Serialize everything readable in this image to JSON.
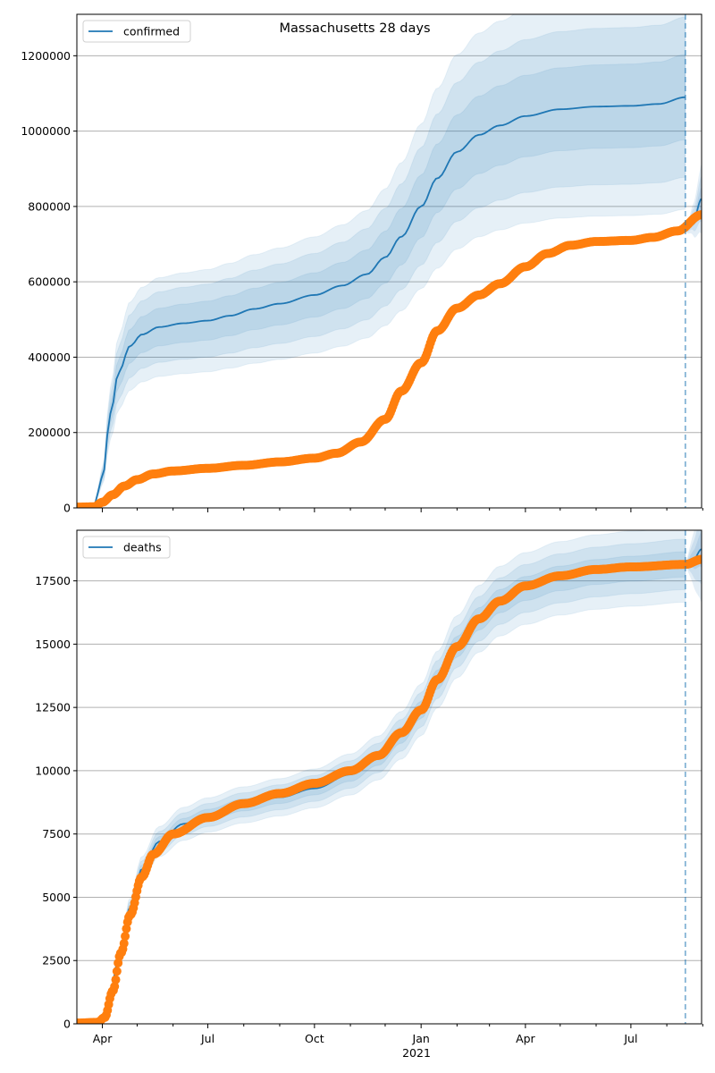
{
  "title": "Massachusetts 28 days",
  "colors": {
    "model": "#1f77b4",
    "observed": "#ff7f0e",
    "band": "#1f77b4",
    "grid": "#b0b0b0",
    "forecast_line": "#1f77b4"
  },
  "x_axis": {
    "start": "2020-03-10",
    "end": "2021-08-31",
    "major_ticks": [
      {
        "date": "2020-04-01",
        "label": "Apr"
      },
      {
        "date": "2020-07-01",
        "label": "Jul"
      },
      {
        "date": "2020-10-01",
        "label": "Oct"
      },
      {
        "date": "2021-01-01",
        "label": "Jan"
      },
      {
        "date": "2021-04-01",
        "label": "Apr"
      },
      {
        "date": "2021-07-01",
        "label": "Jul"
      }
    ],
    "year_label": "2021",
    "forecast_date": "2021-08-17"
  },
  "chart_data": [
    {
      "type": "line",
      "panel": "top",
      "title": "Massachusetts 28 days",
      "legend": [
        {
          "label": "confirmed",
          "placement": "upper-left"
        }
      ],
      "ylim": [
        0,
        1310000
      ],
      "yticks": [
        0,
        200000,
        400000,
        600000,
        800000,
        1000000,
        1200000
      ],
      "ytick_labels": [
        "0",
        "200000",
        "400000",
        "600000",
        "800000",
        "1000000",
        "1200000"
      ],
      "grid": "y",
      "series": [
        {
          "name": "confirmed-model",
          "legend_label": "confirmed",
          "points": [
            [
              "2020-03-10",
              0
            ],
            [
              "2020-03-25",
              10000
            ],
            [
              "2020-04-01",
              80000
            ],
            [
              "2020-04-08",
              250000
            ],
            [
              "2020-04-15",
              360000
            ],
            [
              "2020-04-25",
              430000
            ],
            [
              "2020-05-05",
              460000
            ],
            [
              "2020-05-20",
              480000
            ],
            [
              "2020-06-10",
              490000
            ],
            [
              "2020-07-01",
              497000
            ],
            [
              "2020-07-20",
              510000
            ],
            [
              "2020-08-10",
              528000
            ],
            [
              "2020-09-01",
              542000
            ],
            [
              "2020-10-01",
              565000
            ],
            [
              "2020-10-25",
              590000
            ],
            [
              "2020-11-15",
              620000
            ],
            [
              "2020-12-01",
              665000
            ],
            [
              "2020-12-15",
              720000
            ],
            [
              "2021-01-01",
              800000
            ],
            [
              "2021-01-15",
              875000
            ],
            [
              "2021-02-01",
              945000
            ],
            [
              "2021-02-20",
              990000
            ],
            [
              "2021-03-10",
              1015000
            ],
            [
              "2021-04-01",
              1040000
            ],
            [
              "2021-05-01",
              1058000
            ],
            [
              "2021-06-01",
              1065000
            ],
            [
              "2021-07-01",
              1067000
            ],
            [
              "2021-07-25",
              1072000
            ],
            [
              "2021-08-17",
              1090000
            ]
          ],
          "bands": {
            "inner_halfwidth": 0.08,
            "mid_halfwidth": 0.15,
            "outer_halfwidth": 0.21
          }
        },
        {
          "name": "confirmed-forecast",
          "points": [
            [
              "2021-08-17",
              735000
            ],
            [
              "2021-08-24",
              765000
            ],
            [
              "2021-08-31",
              820000
            ]
          ]
        },
        {
          "name": "confirmed-observed",
          "type": "scatter",
          "points": [
            [
              "2020-03-10",
              2000
            ],
            [
              "2020-03-25",
              3000
            ],
            [
              "2020-04-01",
              15000
            ],
            [
              "2020-04-10",
              35000
            ],
            [
              "2020-04-20",
              58000
            ],
            [
              "2020-05-01",
              75000
            ],
            [
              "2020-05-15",
              90000
            ],
            [
              "2020-06-01",
              98000
            ],
            [
              "2020-07-01",
              105000
            ],
            [
              "2020-08-01",
              113000
            ],
            [
              "2020-09-01",
              122000
            ],
            [
              "2020-10-01",
              132000
            ],
            [
              "2020-10-20",
              145000
            ],
            [
              "2020-11-10",
              175000
            ],
            [
              "2020-12-01",
              235000
            ],
            [
              "2020-12-15",
              310000
            ],
            [
              "2021-01-01",
              385000
            ],
            [
              "2021-01-15",
              470000
            ],
            [
              "2021-02-01",
              530000
            ],
            [
              "2021-02-20",
              565000
            ],
            [
              "2021-03-10",
              595000
            ],
            [
              "2021-04-01",
              640000
            ],
            [
              "2021-04-20",
              675000
            ],
            [
              "2021-05-10",
              697000
            ],
            [
              "2021-06-01",
              707000
            ],
            [
              "2021-07-01",
              710000
            ],
            [
              "2021-07-20",
              718000
            ],
            [
              "2021-08-10",
              735000
            ],
            [
              "2021-08-31",
              778000
            ]
          ]
        }
      ]
    },
    {
      "type": "line",
      "panel": "bottom",
      "legend": [
        {
          "label": "deaths",
          "placement": "upper-left"
        }
      ],
      "ylim": [
        0,
        19500
      ],
      "yticks": [
        0,
        2500,
        5000,
        7500,
        10000,
        12500,
        15000,
        17500
      ],
      "ytick_labels": [
        "0",
        "2500",
        "5000",
        "7500",
        "10000",
        "12500",
        "15000",
        "17500"
      ],
      "grid": "y",
      "series": [
        {
          "name": "deaths-model",
          "legend_label": "deaths",
          "points": [
            [
              "2020-03-10",
              0
            ],
            [
              "2020-03-28",
              50
            ],
            [
              "2020-04-05",
              600
            ],
            [
              "2020-04-15",
              2500
            ],
            [
              "2020-04-25",
              4600
            ],
            [
              "2020-05-05",
              6100
            ],
            [
              "2020-05-20",
              7200
            ],
            [
              "2020-06-10",
              7900
            ],
            [
              "2020-07-01",
              8250
            ],
            [
              "2020-08-01",
              8650
            ],
            [
              "2020-09-01",
              8950
            ],
            [
              "2020-10-01",
              9300
            ],
            [
              "2020-11-01",
              9850
            ],
            [
              "2020-11-25",
              10500
            ],
            [
              "2020-12-15",
              11400
            ],
            [
              "2021-01-01",
              12400
            ],
            [
              "2021-01-15",
              13600
            ],
            [
              "2021-02-01",
              14900
            ],
            [
              "2021-02-20",
              16000
            ],
            [
              "2021-03-10",
              16700
            ],
            [
              "2021-04-01",
              17200
            ],
            [
              "2021-05-01",
              17600
            ],
            [
              "2021-06-01",
              17850
            ],
            [
              "2021-07-01",
              17980
            ],
            [
              "2021-08-17",
              18150
            ]
          ],
          "bands": {
            "inner_halfwidth": 0.025,
            "mid_halfwidth": 0.05,
            "outer_halfwidth": 0.075
          }
        },
        {
          "name": "deaths-forecast",
          "points": [
            [
              "2021-08-17",
              18150
            ],
            [
              "2021-08-24",
              18350
            ],
            [
              "2021-08-31",
              18750
            ]
          ]
        },
        {
          "name": "deaths-observed",
          "type": "scatter",
          "points": [
            [
              "2020-03-10",
              30
            ],
            [
              "2020-03-28",
              60
            ],
            [
              "2020-04-03",
              250
            ],
            [
              "2020-04-10",
              1300
            ],
            [
              "2020-04-17",
              2800
            ],
            [
              "2020-04-25",
              4300
            ],
            [
              "2020-05-05",
              5800
            ],
            [
              "2020-05-15",
              6700
            ],
            [
              "2020-06-01",
              7500
            ],
            [
              "2020-07-01",
              8150
            ],
            [
              "2020-08-01",
              8700
            ],
            [
              "2020-09-01",
              9100
            ],
            [
              "2020-10-01",
              9500
            ],
            [
              "2020-11-01",
              10000
            ],
            [
              "2020-11-25",
              10600
            ],
            [
              "2020-12-15",
              11500
            ],
            [
              "2021-01-01",
              12400
            ],
            [
              "2021-01-15",
              13600
            ],
            [
              "2021-02-01",
              14900
            ],
            [
              "2021-02-20",
              16000
            ],
            [
              "2021-03-10",
              16700
            ],
            [
              "2021-04-01",
              17300
            ],
            [
              "2021-05-01",
              17700
            ],
            [
              "2021-06-01",
              17950
            ],
            [
              "2021-07-01",
              18050
            ],
            [
              "2021-08-17",
              18150
            ],
            [
              "2021-08-31",
              18350
            ]
          ]
        }
      ]
    }
  ]
}
